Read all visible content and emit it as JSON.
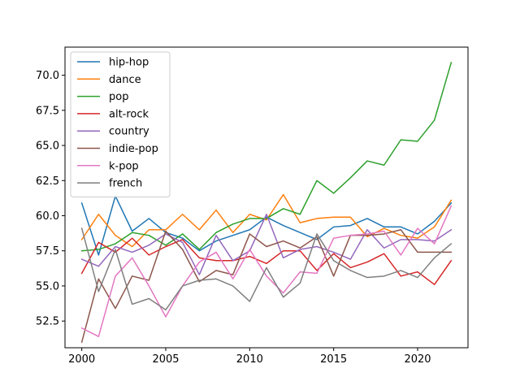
{
  "chart_data": {
    "type": "line",
    "title": "",
    "xlabel": "",
    "ylabel": "",
    "xlim": [
      1999.0,
      2023.0
    ],
    "ylim": [
      50.6,
      72.0
    ],
    "xticks": [
      2000,
      2005,
      2010,
      2015,
      2020
    ],
    "xtick_labels": [
      "2000",
      "2005",
      "2010",
      "2015",
      "2020"
    ],
    "yticks": [
      52.5,
      55.0,
      57.5,
      60.0,
      62.5,
      65.0,
      67.5,
      70.0
    ],
    "ytick_labels": [
      "52.5",
      "55.0",
      "57.5",
      "60.0",
      "62.5",
      "65.0",
      "67.5",
      "70.0"
    ],
    "grid": false,
    "legend_position": "top-left",
    "x": [
      2000,
      2001,
      2002,
      2003,
      2004,
      2005,
      2006,
      2007,
      2008,
      2009,
      2010,
      2011,
      2012,
      2013,
      2014,
      2015,
      2016,
      2017,
      2018,
      2019,
      2020,
      2021,
      2022
    ],
    "series": [
      {
        "name": "hip-hop",
        "color": "#1f77b4",
        "values": [
          60.9,
          57.2,
          61.4,
          58.9,
          59.8,
          58.8,
          58.4,
          57.5,
          58.2,
          58.6,
          59.0,
          59.9,
          59.3,
          58.8,
          58.3,
          59.2,
          59.3,
          59.8,
          59.2,
          59.2,
          58.7,
          59.6,
          60.9
        ]
      },
      {
        "name": "dance",
        "color": "#ff7f0e",
        "values": [
          58.3,
          60.1,
          58.6,
          57.8,
          59.0,
          59.0,
          60.1,
          59.0,
          60.4,
          58.8,
          60.1,
          59.7,
          61.5,
          59.5,
          59.8,
          59.9,
          59.9,
          58.5,
          59.1,
          58.6,
          58.4,
          59.2,
          61.1
        ]
      },
      {
        "name": "pop",
        "color": "#2ca02c",
        "values": [
          57.5,
          57.6,
          58.0,
          58.8,
          58.6,
          57.9,
          58.7,
          57.6,
          58.8,
          59.4,
          59.8,
          59.8,
          60.5,
          60.1,
          62.5,
          61.6,
          62.7,
          63.9,
          63.6,
          65.4,
          65.3,
          66.8,
          70.9
        ]
      },
      {
        "name": "alt-rock",
        "color": "#d62728",
        "values": [
          55.9,
          58.1,
          57.4,
          58.4,
          57.2,
          57.8,
          58.3,
          57.0,
          56.8,
          56.8,
          57.1,
          56.6,
          57.5,
          57.5,
          56.1,
          57.3,
          56.3,
          56.7,
          57.3,
          55.7,
          56.0,
          55.1,
          56.8
        ]
      },
      {
        "name": "country",
        "color": "#9467bd",
        "values": [
          56.9,
          56.4,
          57.8,
          57.4,
          57.9,
          58.7,
          58.1,
          55.8,
          58.6,
          56.8,
          57.5,
          60.1,
          57.0,
          57.6,
          57.8,
          57.4,
          56.9,
          59.0,
          57.7,
          58.3,
          58.3,
          58.2,
          59.0
        ]
      },
      {
        "name": "indie-pop",
        "color": "#8c564b",
        "values": [
          51.0,
          55.5,
          53.4,
          55.7,
          55.4,
          58.9,
          57.6,
          55.3,
          56.1,
          55.8,
          58.7,
          57.8,
          58.2,
          57.7,
          58.5,
          55.7,
          58.6,
          58.6,
          58.7,
          59.0,
          57.4,
          57.4,
          57.4
        ]
      },
      {
        "name": "k-pop",
        "color": "#e377c2",
        "values": [
          52.0,
          51.4,
          55.7,
          57.0,
          55.0,
          52.8,
          55.0,
          56.7,
          57.4,
          55.5,
          57.6,
          55.7,
          54.5,
          56.0,
          55.9,
          58.4,
          58.6,
          58.7,
          58.9,
          57.2,
          59.1,
          58.0,
          60.7
        ]
      },
      {
        "name": "french",
        "color": "#7f7f7f",
        "values": [
          59.1,
          54.6,
          57.6,
          53.7,
          54.1,
          53.3,
          55.0,
          55.4,
          55.5,
          55.0,
          53.9,
          56.3,
          54.2,
          55.2,
          58.7,
          56.8,
          56.1,
          55.6,
          55.7,
          56.1,
          55.6,
          57.0,
          58.0
        ]
      }
    ]
  }
}
